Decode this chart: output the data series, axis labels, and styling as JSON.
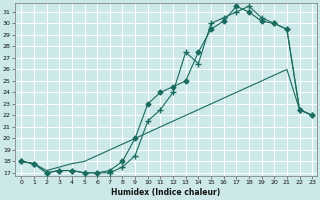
{
  "xlabel": "Humidex (Indice chaleur)",
  "bg_color": "#cce8e8",
  "grid_color": "#ffffff",
  "line_color": "#1a6b60",
  "xlim": [
    -0.5,
    23.4
  ],
  "ylim": [
    16.7,
    31.8
  ],
  "xticks": [
    0,
    1,
    2,
    3,
    4,
    5,
    6,
    7,
    8,
    9,
    10,
    11,
    12,
    13,
    14,
    15,
    16,
    17,
    18,
    19,
    20,
    21,
    22,
    23
  ],
  "yticks": [
    17,
    18,
    19,
    20,
    21,
    22,
    23,
    24,
    25,
    26,
    27,
    28,
    29,
    30,
    31
  ],
  "line1_x": [
    0,
    1,
    2,
    3,
    4,
    5,
    6,
    7,
    8,
    9,
    10,
    11,
    12,
    13,
    14,
    15,
    16,
    17,
    18,
    19,
    20,
    21,
    22,
    23
  ],
  "line1_y": [
    18.0,
    17.8,
    17.0,
    17.2,
    17.2,
    17.0,
    17.0,
    17.2,
    18.0,
    20.0,
    23.0,
    24.0,
    24.5,
    25.0,
    27.5,
    29.5,
    30.2,
    31.5,
    31.0,
    30.2,
    30.0,
    29.5,
    22.5,
    22.0
  ],
  "line2_x": [
    0,
    1,
    2,
    3,
    4,
    5,
    6,
    7,
    8,
    9,
    10,
    11,
    12,
    13,
    14,
    15,
    16,
    17,
    18,
    19,
    20,
    21,
    22,
    23
  ],
  "line2_y": [
    18.0,
    17.8,
    17.0,
    17.2,
    17.2,
    17.0,
    17.0,
    17.0,
    17.5,
    18.5,
    21.5,
    22.5,
    24.0,
    27.5,
    26.5,
    30.0,
    30.5,
    31.0,
    31.5,
    30.5,
    30.0,
    29.5,
    22.5,
    22.0
  ],
  "line3_x": [
    0,
    1,
    2,
    3,
    4,
    5,
    6,
    7,
    8,
    9,
    10,
    11,
    12,
    13,
    14,
    15,
    16,
    17,
    18,
    19,
    20,
    21,
    22,
    23
  ],
  "line3_y": [
    18.0,
    17.8,
    17.2,
    17.5,
    17.8,
    18.0,
    18.5,
    19.0,
    19.5,
    20.0,
    20.5,
    21.0,
    21.5,
    22.0,
    22.5,
    23.0,
    23.5,
    24.0,
    24.5,
    25.0,
    25.5,
    26.0,
    22.5,
    22.0
  ]
}
